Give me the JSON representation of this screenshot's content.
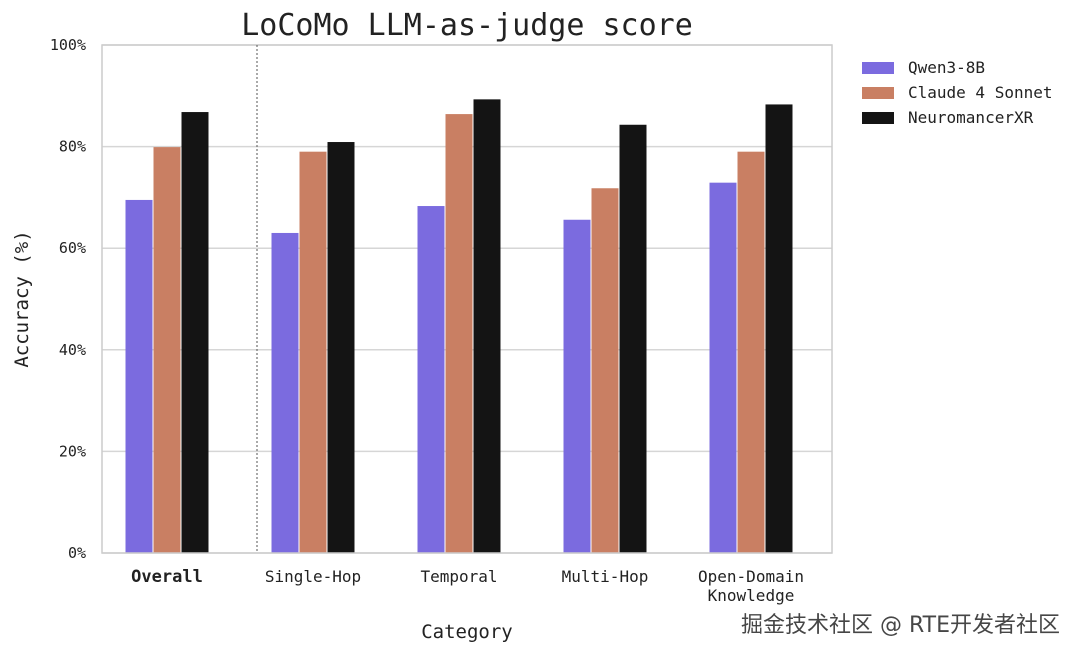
{
  "chart_data": {
    "type": "bar",
    "title": "LoCoMo LLM-as-judge score",
    "xlabel": "Category",
    "ylabel": "Accuracy (%)",
    "ylim": [
      0,
      100
    ],
    "yticks": [
      "0%",
      "20%",
      "40%",
      "60%",
      "80%",
      "100%"
    ],
    "ytick_values": [
      0,
      20,
      40,
      60,
      80,
      100
    ],
    "grid": true,
    "legend_position": "outside-top-right",
    "categories": [
      "Overall",
      "Single-Hop",
      "Temporal",
      "Multi-Hop",
      "Open-Domain Knowledge"
    ],
    "category_lines": [
      [
        "Overall"
      ],
      [
        "Single-Hop"
      ],
      [
        "Temporal"
      ],
      [
        "Multi-Hop"
      ],
      [
        "Open-Domain",
        "Knowledge"
      ]
    ],
    "emphasized_category": "Overall",
    "separator_after_category": "Overall",
    "series": [
      {
        "name": "Qwen3-8B",
        "color": "#7B6BDF",
        "values": [
          69.5,
          63,
          68.3,
          65.6,
          72.9
        ]
      },
      {
        "name": "Claude 4 Sonnet",
        "color": "#C97F63",
        "values": [
          79.9,
          79,
          86.4,
          71.8,
          79
        ]
      },
      {
        "name": "NeuromancerXR",
        "color": "#141414",
        "values": [
          86.8,
          80.9,
          89.3,
          84.3,
          88.3
        ]
      }
    ]
  },
  "watermark": "掘金技术社区 @ RTE开发者社区"
}
